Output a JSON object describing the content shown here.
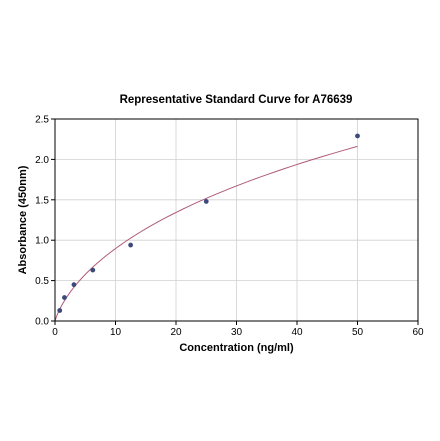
{
  "chart_data": {
    "type": "scatter",
    "title": "Representative Standard Curve for A76639",
    "xlabel": "Concentration (ng/ml)",
    "ylabel": "Absorbance (450nm)",
    "xlim": [
      0,
      60
    ],
    "ylim": [
      0,
      2.5
    ],
    "xticks": [
      "0",
      "10",
      "20",
      "30",
      "40",
      "50",
      "60"
    ],
    "yticks": [
      "0.0",
      "0.5",
      "1.0",
      "1.5",
      "2.0",
      "2.5"
    ],
    "grid": true,
    "series": [
      {
        "x": [
          0.78,
          1.56,
          3.13,
          6.25,
          12.5,
          25,
          50
        ],
        "y": [
          0.13,
          0.29,
          0.45,
          0.63,
          0.94,
          1.48,
          2.29
        ]
      }
    ],
    "colors": {
      "point": "#3b4a7a",
      "curve": "#b05a7a"
    }
  }
}
